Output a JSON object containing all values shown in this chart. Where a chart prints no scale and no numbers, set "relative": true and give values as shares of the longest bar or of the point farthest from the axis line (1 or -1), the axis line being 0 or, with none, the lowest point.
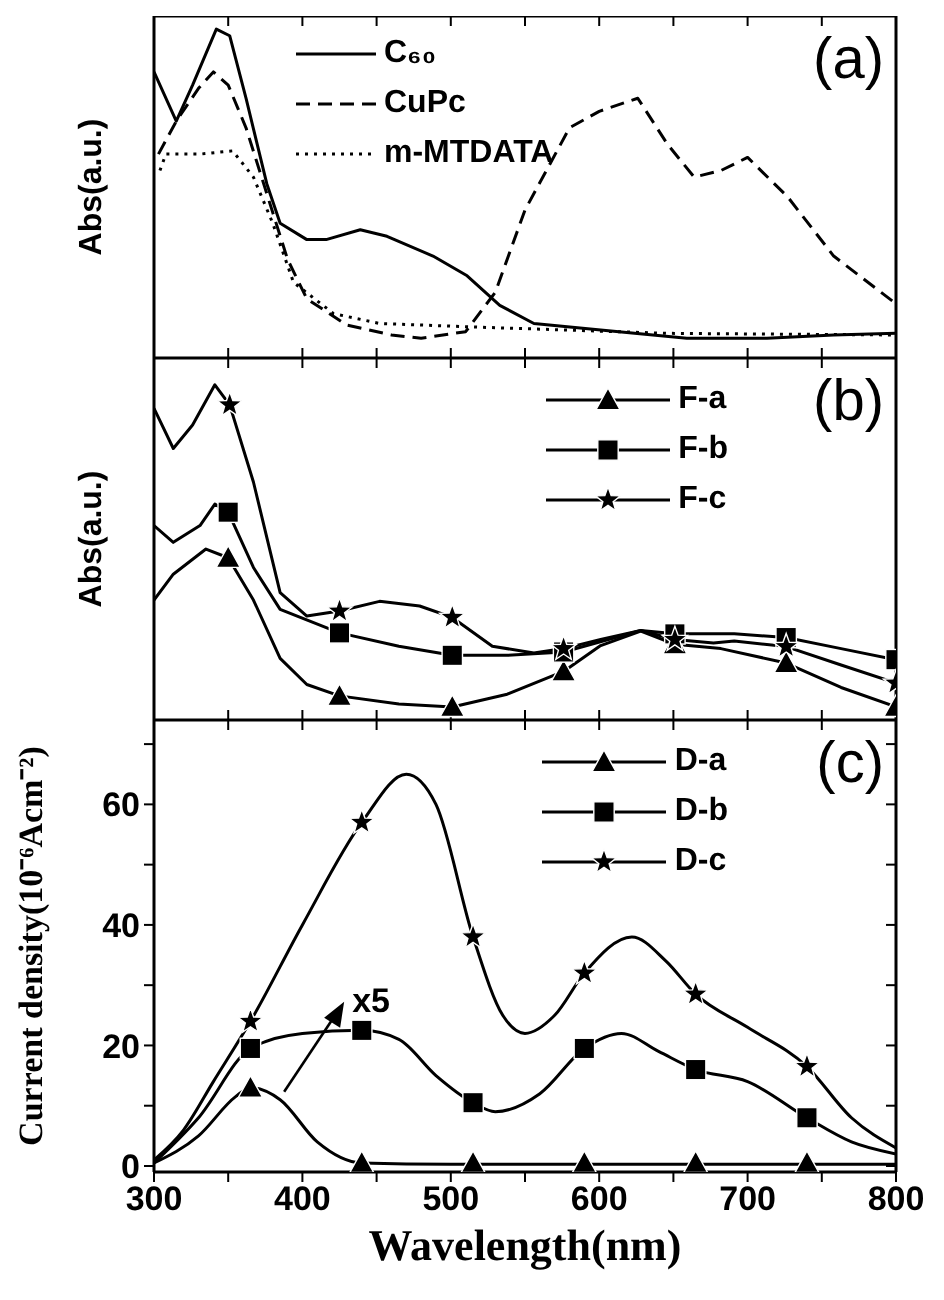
{
  "chart_data": [
    {
      "type": "line",
      "ylabel": "Abs(a.u.)",
      "relative": true,
      "tick_labels": false,
      "legend": "top",
      "annotations": [
        "(a)"
      ],
      "xlim": [
        300,
        800
      ],
      "xticks": [
        300,
        {
          "value": 350,
          "label": null
        },
        400,
        {
          "value": 450,
          "label": null
        },
        500,
        {
          "value": 550,
          "label": null
        },
        600,
        {
          "value": 650,
          "label": null
        },
        700,
        {
          "value": 750,
          "label": null
        },
        800
      ],
      "series": [
        {
          "name": "C₆₀",
          "color": "#000000",
          "line_style": "solid",
          "x": [
            300,
            315,
            326,
            342,
            351,
            362,
            376,
            385,
            403,
            416,
            439,
            457,
            488,
            511,
            533,
            556,
            601,
            659,
            713,
            758,
            800
          ],
          "values": [
            0.87,
            0.72,
            0.83,
            1.0,
            0.98,
            0.79,
            0.53,
            0.41,
            0.36,
            0.36,
            0.39,
            0.37,
            0.31,
            0.25,
            0.16,
            0.105,
            0.085,
            0.06,
            0.06,
            0.07,
            0.075
          ]
        },
        {
          "name": "CuPc",
          "color": "#000000",
          "line_style": "dashed",
          "x": [
            303,
            315,
            330,
            340,
            350,
            362,
            376,
            390,
            403,
            430,
            460,
            480,
            510,
            530,
            550,
            580,
            600,
            626,
            646,
            664,
            682,
            700,
            727,
            758,
            800
          ],
          "values": [
            0.62,
            0.72,
            0.82,
            0.87,
            0.83,
            0.7,
            0.5,
            0.3,
            0.18,
            0.1,
            0.07,
            0.06,
            0.08,
            0.2,
            0.45,
            0.7,
            0.75,
            0.79,
            0.65,
            0.55,
            0.57,
            0.61,
            0.49,
            0.31,
            0.165
          ]
        },
        {
          "name": "m-MTDATA",
          "color": "#000000",
          "line_style": "dotted",
          "x": [
            304,
            308,
            331,
            353,
            367,
            380,
            394,
            421,
            452,
            511,
            578,
            646,
            800
          ],
          "values": [
            0.57,
            0.62,
            0.62,
            0.63,
            0.55,
            0.41,
            0.23,
            0.135,
            0.105,
            0.095,
            0.085,
            0.075,
            0.07
          ]
        }
      ]
    },
    {
      "type": "line",
      "ylabel": "Abs(a.u.)",
      "relative": true,
      "tick_labels": false,
      "legend": "top right",
      "annotations": [
        "(b)"
      ],
      "xlim": [
        300,
        800
      ],
      "xticks": [
        300,
        {
          "value": 350,
          "label": null
        },
        400,
        {
          "value": 450,
          "label": null
        },
        500,
        {
          "value": 550,
          "label": null
        },
        600,
        {
          "value": 650,
          "label": null
        },
        700,
        {
          "value": 750,
          "label": null
        },
        800
      ],
      "series": [
        {
          "color": "#000000",
          "x": [
            300,
            313,
            335,
            350,
            367,
            385,
            403,
            425,
            465,
            501,
            538,
            576,
            601,
            628,
            651,
            682,
            726,
            763,
            800
          ],
          "values": [
            0.358,
            0.435,
            0.51,
            0.484,
            0.358,
            0.184,
            0.106,
            0.072,
            0.048,
            0.039,
            0.077,
            0.145,
            0.222,
            0.265,
            0.226,
            0.213,
            0.17,
            0.097,
            0.039
          ]
        },
        {
          "color": "#000000",
          "x": [
            300,
            313,
            331,
            341,
            350,
            367,
            385,
            425,
            465,
            501,
            538,
            576,
            628,
            651,
            691,
            726,
            763,
            800
          ],
          "values": [
            0.58,
            0.53,
            0.58,
            0.644,
            0.62,
            0.455,
            0.33,
            0.26,
            0.22,
            0.193,
            0.193,
            0.203,
            0.267,
            0.257,
            0.257,
            0.246,
            0.213,
            0.18
          ]
        },
        {
          "color": "#000000",
          "x": [
            300,
            313,
            326,
            341,
            351,
            367,
            385,
            403,
            425,
            452,
            479,
            501,
            528,
            556,
            576,
            601,
            628,
            651,
            677,
            691,
            726,
            763,
            800
          ],
          "values": [
            0.93,
            0.81,
            0.88,
            1.0,
            0.94,
            0.71,
            0.38,
            0.31,
            0.325,
            0.354,
            0.34,
            0.306,
            0.22,
            0.2,
            0.213,
            0.24,
            0.267,
            0.24,
            0.23,
            0.236,
            0.219,
            0.164,
            0.11
          ]
        },
        {
          "name": "F-a",
          "type": "scatter",
          "marker": "triangle",
          "color": "#000000",
          "x": [
            350,
            425,
            501,
            576,
            651,
            726,
            800
          ],
          "values": [
            0.484,
            0.072,
            0.039,
            0.145,
            0.226,
            0.17,
            0.039
          ]
        },
        {
          "name": "F-b",
          "type": "scatter",
          "marker": "square",
          "color": "#000000",
          "x": [
            350,
            425,
            501,
            576,
            651,
            726,
            800
          ],
          "values": [
            0.62,
            0.26,
            0.193,
            0.203,
            0.257,
            0.246,
            0.18
          ]
        },
        {
          "name": "F-c",
          "type": "scatter",
          "marker": "star",
          "color": "#000000",
          "x": [
            351,
            425,
            501,
            576,
            651,
            726,
            800
          ],
          "values": [
            0.94,
            0.325,
            0.306,
            0.213,
            0.24,
            0.219,
            0.11
          ]
        }
      ]
    },
    {
      "type": "line",
      "xlabel": "Wavelength(nm)",
      "ylabel": "Current density(10⁻⁶Acm⁻²)",
      "legend": "top right",
      "annotations": [
        "(c)",
        {
          "text": "x5",
          "x": 385,
          "y": 11
        }
      ],
      "xlim": [
        300,
        800
      ],
      "xticks": [
        300,
        {
          "value": 350,
          "label": null
        },
        400,
        {
          "value": 450,
          "label": null
        },
        500,
        {
          "value": 550,
          "label": null
        },
        600,
        {
          "value": 650,
          "label": null
        },
        700,
        {
          "value": 750,
          "label": null
        },
        800
      ],
      "ylim": [
        -1,
        74
      ],
      "yticks": [
        0,
        {
          "value": 10,
          "label": null
        },
        20,
        {
          "value": 30,
          "label": null
        },
        40,
        {
          "value": 50,
          "label": null
        },
        60,
        {
          "value": 70,
          "label": null
        }
      ],
      "series": [
        {
          "color": "#000000",
          "x": [
            300,
            330,
            355,
            365,
            385,
            410,
            440,
            500,
            800
          ],
          "values": [
            0.5,
            5,
            11.5,
            13,
            11,
            4,
            0.5,
            0.3,
            0.3
          ]
        },
        {
          "color": "#000000",
          "x": [
            300,
            330,
            365,
            400,
            440,
            465,
            490,
            515,
            530,
            560,
            590,
            615,
            640,
            665,
            700,
            740,
            770,
            800
          ],
          "values": [
            0.5,
            8,
            19.5,
            22,
            22.5,
            21,
            15,
            10.5,
            9,
            12,
            19.5,
            22,
            19,
            16,
            14,
            8,
            4,
            2
          ]
        },
        {
          "color": "#000000",
          "x": [
            300,
            320,
            340,
            365,
            400,
            440,
            470,
            490,
            515,
            535,
            550,
            570,
            590,
            622,
            645,
            665,
            700,
            740,
            770,
            800
          ],
          "values": [
            1,
            6,
            14,
            24,
            40,
            57,
            65,
            60,
            38,
            25,
            22,
            25,
            32,
            38,
            34,
            28.5,
            23,
            16.5,
            8,
            3
          ]
        },
        {
          "name": "D-a",
          "type": "scatter",
          "marker": "triangle",
          "color": "#000000",
          "x": [
            365,
            440,
            515,
            590,
            665,
            740
          ],
          "values": [
            13,
            0.5,
            0.5,
            0.5,
            0.5,
            0.5
          ]
        },
        {
          "name": "D-b",
          "type": "scatter",
          "marker": "square",
          "color": "#000000",
          "x": [
            365,
            440,
            515,
            590,
            665,
            740
          ],
          "values": [
            19.5,
            22.5,
            10.5,
            19.5,
            16,
            8
          ]
        },
        {
          "name": "D-c",
          "type": "scatter",
          "marker": "star",
          "color": "#000000",
          "x": [
            365,
            440,
            515,
            590,
            665,
            740
          ],
          "values": [
            24,
            57,
            38,
            32,
            28.5,
            16.5
          ]
        }
      ]
    }
  ]
}
